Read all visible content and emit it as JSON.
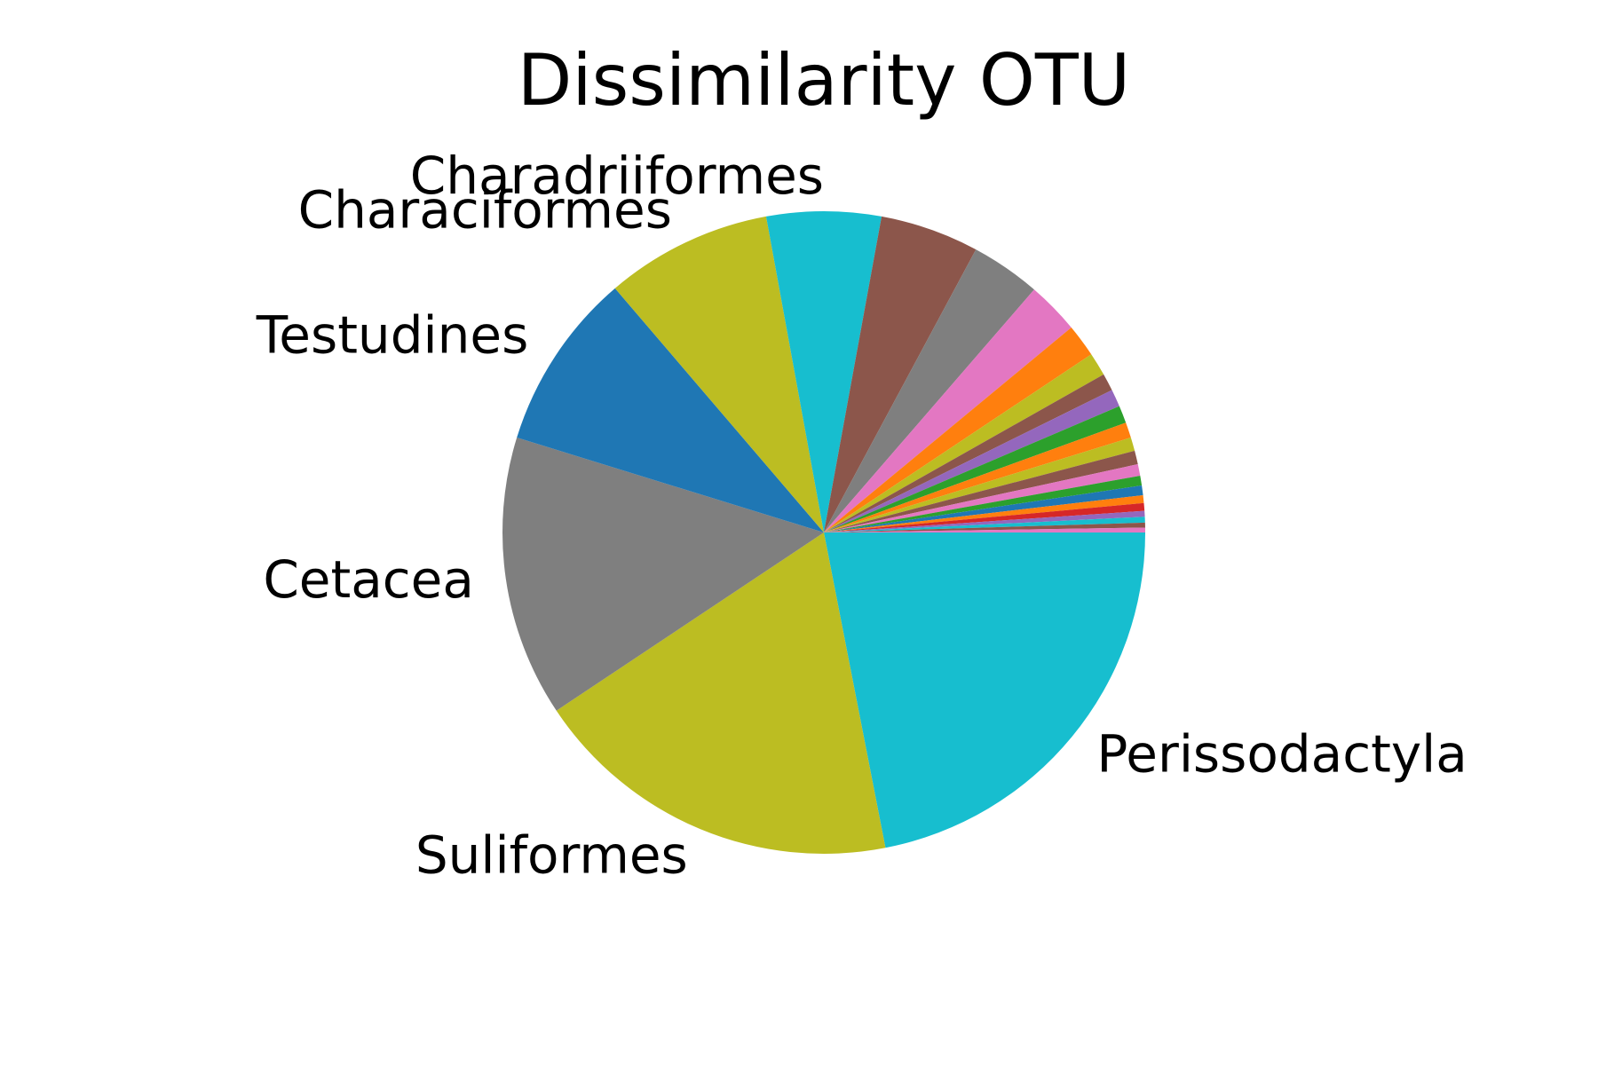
{
  "chart_data": {
    "type": "pie",
    "title": "Dissimilarity OTU",
    "start_angle_deg": 0,
    "direction": "clockwise",
    "slices": [
      {
        "label": "Perissodactyla",
        "value": 22.5,
        "color": "#17becf"
      },
      {
        "label": "Suliformes",
        "value": 19.2,
        "color": "#bcbd22"
      },
      {
        "label": "Cetacea",
        "value": 14.5,
        "color": "#7f7f7f"
      },
      {
        "label": "Testudines",
        "value": 9.2,
        "color": "#1f77b4"
      },
      {
        "label": "Characiformes",
        "value": 8.6,
        "color": "#bcbd22"
      },
      {
        "label": "Charadriiformes",
        "value": 5.9,
        "color": "#17becf"
      },
      {
        "label": "",
        "value": 5.1,
        "color": "#8c564b"
      },
      {
        "label": "",
        "value": 3.6,
        "color": "#7f7f7f"
      },
      {
        "label": "",
        "value": 2.7,
        "color": "#e377c2"
      },
      {
        "label": "",
        "value": 1.7,
        "color": "#ff7f0e"
      },
      {
        "label": "",
        "value": 1.2,
        "color": "#bcbd22"
      },
      {
        "label": "",
        "value": 0.9,
        "color": "#8c564b"
      },
      {
        "label": "",
        "value": 0.9,
        "color": "#9467bd"
      },
      {
        "label": "",
        "value": 0.9,
        "color": "#2ca02c"
      },
      {
        "label": "",
        "value": 0.8,
        "color": "#ff7f0e"
      },
      {
        "label": "",
        "value": 0.7,
        "color": "#bcbd22"
      },
      {
        "label": "",
        "value": 0.7,
        "color": "#8c564b"
      },
      {
        "label": "",
        "value": 0.6,
        "color": "#e377c2"
      },
      {
        "label": "",
        "value": 0.5,
        "color": "#2ca02c"
      },
      {
        "label": "",
        "value": 0.5,
        "color": "#1f77b4"
      },
      {
        "label": "",
        "value": 0.4,
        "color": "#ff7f0e"
      },
      {
        "label": "",
        "value": 0.4,
        "color": "#d62728"
      },
      {
        "label": "",
        "value": 0.3,
        "color": "#9467bd"
      },
      {
        "label": "",
        "value": 0.3,
        "color": "#17becf"
      },
      {
        "label": "",
        "value": 0.25,
        "color": "#8c564b"
      },
      {
        "label": "",
        "value": 0.25,
        "color": "#e377c2"
      }
    ]
  }
}
